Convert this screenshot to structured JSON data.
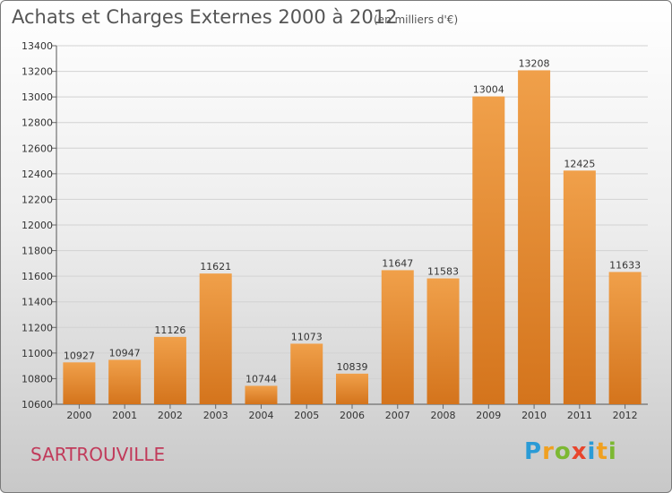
{
  "header": {
    "title": "Achats et Charges Externes 2000 à 2012",
    "subtitle": "(en milliers d'€)"
  },
  "footer": {
    "city": "SARTROUVILLE",
    "logo_letters": [
      "P",
      "r",
      "o",
      "x",
      "i",
      "t",
      "i"
    ],
    "logo_colors": [
      "#2a9bd6",
      "#f0a020",
      "#7cb832",
      "#e8452c",
      "#2a9bd6",
      "#f0a020",
      "#7cb832"
    ]
  },
  "chart_data": {
    "type": "bar",
    "title": "Achats et Charges Externes 2000 à 2012",
    "subtitle": "(en milliers d'€)",
    "categories": [
      "2000",
      "2001",
      "2002",
      "2003",
      "2004",
      "2005",
      "2006",
      "2007",
      "2008",
      "2009",
      "2010",
      "2011",
      "2012"
    ],
    "values": [
      10927,
      10947,
      11126,
      11621,
      10744,
      11073,
      10839,
      11647,
      11583,
      13004,
      13208,
      12425,
      11633
    ],
    "ylim": [
      10600,
      13400
    ],
    "yticks": [
      10600,
      10800,
      11000,
      11200,
      11400,
      11600,
      11800,
      12000,
      12200,
      12400,
      12600,
      12800,
      13000,
      13200,
      13400
    ],
    "grid": true,
    "bar_color": "#f0a04a",
    "bar_color_dark": "#d4741c"
  }
}
